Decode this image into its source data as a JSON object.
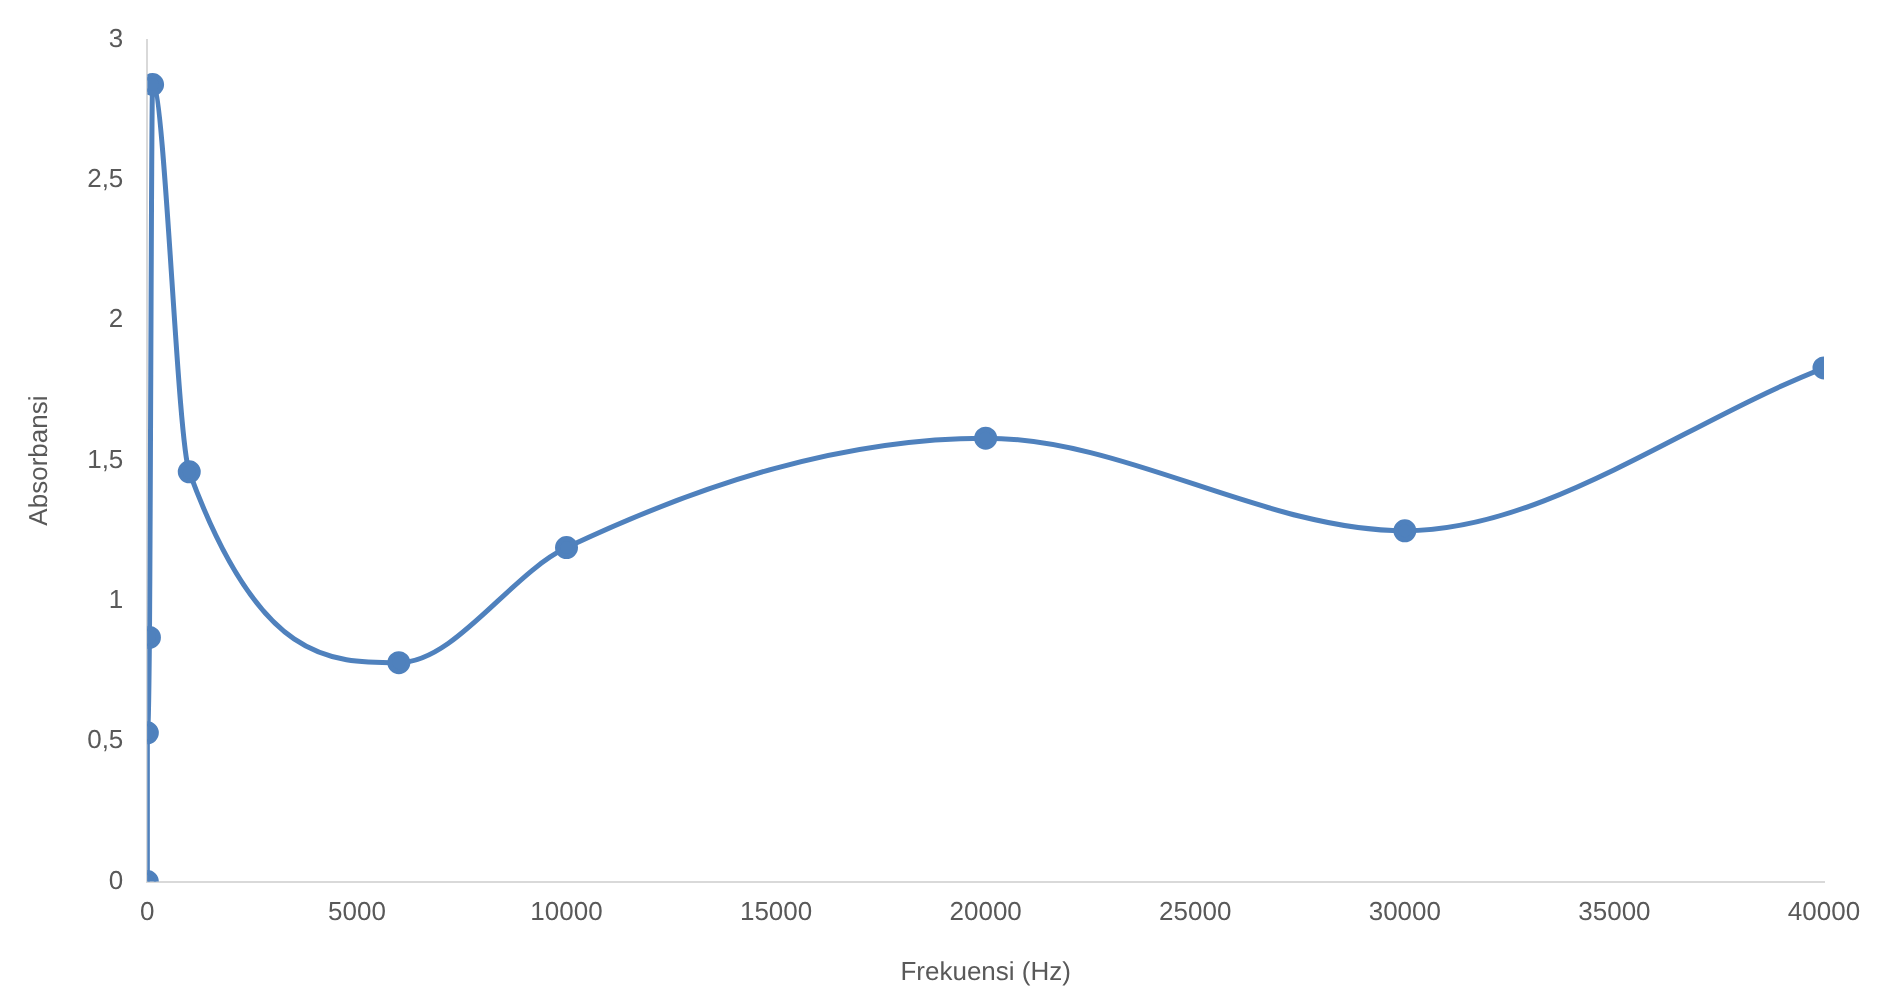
{
  "chart_data": {
    "type": "line",
    "xlabel": "Frekuensi (Hz)",
    "ylabel": "Absorbansi",
    "x": [
      0,
      0,
      50,
      125,
      1000,
      6000,
      10000,
      20000,
      30000,
      40000
    ],
    "series": [
      {
        "color": "#4f81bd",
        "values": [
          0,
          0.53,
          0.87,
          2.84,
          1.46,
          0.78,
          1.19,
          1.58,
          1.25,
          1.83
        ]
      }
    ],
    "xlim": [
      0,
      40000
    ],
    "xticks": [
      0,
      5000,
      10000,
      15000,
      20000,
      25000,
      30000,
      35000,
      40000
    ],
    "ylim": [
      0,
      3
    ],
    "yticks": [
      {
        "value": 0,
        "label": "0"
      },
      {
        "value": 0.5,
        "label": "0,5"
      },
      {
        "value": 1,
        "label": "1"
      },
      {
        "value": 1.5,
        "label": "1,5"
      },
      {
        "value": 2,
        "label": "2"
      },
      {
        "value": 2.5,
        "label": "2,5"
      },
      {
        "value": 3,
        "label": "3"
      }
    ],
    "grid": false,
    "legend": false,
    "marker": "circle",
    "line_style": "solid"
  }
}
